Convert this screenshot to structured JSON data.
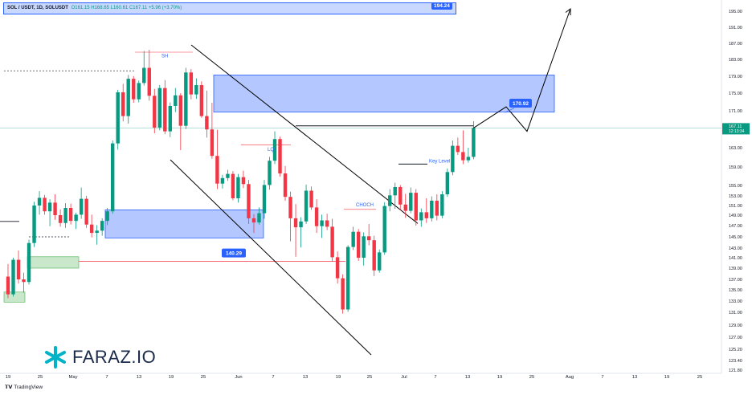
{
  "header": {
    "symbol": "SOL / USDT, 1D, SOLUSDT",
    "ohlc": "O161.15 H168.65 L160.61 C167.11 +5.96 (+3.70%)",
    "top_box_value": "194.24"
  },
  "branding": {
    "logo_text": "FARAZ.IO",
    "tradingview": "TradingView",
    "logo_color": "#00b3c7"
  },
  "colors": {
    "up": "#089981",
    "down": "#f23645",
    "zone_blue": "#2962ff",
    "zone_green": "#4caf50",
    "price_line": "#089981"
  },
  "chart_data": {
    "type": "candlestick",
    "title": "",
    "ylim": [
      121.8,
      197.0
    ],
    "y_ticks": [
      195.0,
      191.0,
      187.0,
      183.0,
      179.0,
      175.0,
      171.0,
      167.0,
      163.0,
      159.0,
      155.0,
      153.0,
      151.0,
      149.0,
      147.0,
      145.0,
      143.0,
      141.0,
      139.0,
      137.0,
      135.0,
      133.0,
      131.0,
      129.0,
      127.0,
      125.2,
      123.4,
      121.8
    ],
    "y_tick_labels": [
      "195.00",
      "191.00",
      "187.00",
      "183.00",
      "179.00",
      "175.00",
      "171.00",
      "167.00",
      "163.00",
      "159.00",
      "155.00",
      "153.00",
      "151.00",
      "149.00",
      "147.00",
      "145.00",
      "143.00",
      "141.00",
      "139.00",
      "137.00",
      "135.00",
      "133.00",
      "131.00",
      "129.00",
      "127.00",
      "125.20",
      "123.40",
      "121.80"
    ],
    "x_tick_labels": [
      "19",
      "25",
      "May",
      "7",
      "13",
      "19",
      "25",
      "Jun",
      "7",
      "13",
      "19",
      "25",
      "Jul",
      "7",
      "13",
      "19",
      "25",
      "Aug",
      "7",
      "13",
      "19",
      "25"
    ],
    "current_price": "167.11",
    "countdown": "12:13:34",
    "annotations": {
      "swing_high": "SH",
      "liquidity": "LQ",
      "key_level": "Key Level",
      "choch": "CHOCH",
      "level_140": "140.29",
      "target_170": "170.92"
    },
    "candles": [
      [
        137.5,
        139.8,
        133.5,
        134.2
      ],
      [
        134.2,
        141.0,
        133.8,
        140.6
      ],
      [
        140.6,
        142.5,
        136.2,
        137.0
      ],
      [
        137.0,
        138.2,
        134.5,
        136.5
      ],
      [
        136.5,
        144.5,
        136.0,
        143.9
      ],
      [
        143.9,
        151.8,
        143.2,
        151.0
      ],
      [
        151.0,
        153.9,
        149.1,
        152.6
      ],
      [
        152.6,
        153.2,
        149.1,
        149.8
      ],
      [
        149.8,
        152.3,
        146.9,
        151.6
      ],
      [
        151.6,
        153.3,
        148.1,
        149.0
      ],
      [
        149.0,
        150.2,
        146.8,
        147.5
      ],
      [
        147.5,
        151.5,
        146.6,
        150.5
      ],
      [
        150.5,
        151.4,
        147.2,
        147.9
      ],
      [
        147.9,
        149.5,
        146.4,
        149.1
      ],
      [
        149.1,
        154.6,
        148.3,
        152.4
      ],
      [
        152.4,
        153.0,
        146.6,
        147.2
      ],
      [
        147.2,
        149.1,
        144.9,
        145.7
      ],
      [
        145.7,
        147.1,
        143.6,
        146.1
      ],
      [
        146.1,
        148.4,
        145.2,
        147.9
      ],
      [
        147.9,
        150.5,
        147.1,
        149.8
      ],
      [
        149.8,
        164.5,
        149.3,
        163.9
      ],
      [
        163.9,
        175.8,
        162.6,
        175.2
      ],
      [
        175.2,
        177.2,
        168.6,
        169.8
      ],
      [
        169.8,
        179.3,
        168.1,
        178.4
      ],
      [
        178.4,
        179.0,
        172.8,
        173.6
      ],
      [
        173.6,
        178.0,
        172.9,
        177.4
      ],
      [
        177.4,
        185.1,
        176.8,
        181.0
      ],
      [
        181.0,
        185.4,
        173.3,
        174.4
      ],
      [
        174.4,
        176.0,
        166.0,
        167.2
      ],
      [
        167.2,
        176.9,
        166.6,
        176.2
      ],
      [
        176.2,
        178.1,
        165.8,
        166.4
      ],
      [
        166.4,
        172.9,
        165.2,
        172.1
      ],
      [
        172.1,
        176.2,
        170.7,
        174.5
      ],
      [
        174.5,
        175.0,
        162.5,
        167.6
      ],
      [
        167.6,
        181.0,
        166.9,
        179.9
      ],
      [
        179.9,
        180.7,
        173.6,
        174.7
      ],
      [
        174.7,
        178.5,
        173.7,
        176.9
      ],
      [
        176.9,
        177.8,
        169.4,
        169.8
      ],
      [
        169.8,
        175.6,
        165.1,
        166.8
      ],
      [
        166.8,
        172.8,
        160.7,
        161.3
      ],
      [
        161.3,
        166.7,
        154.3,
        155.4
      ],
      [
        155.4,
        157.3,
        154.4,
        156.6
      ],
      [
        156.6,
        158.4,
        156.0,
        157.5
      ],
      [
        157.5,
        158.1,
        152.1,
        152.5
      ],
      [
        152.5,
        157.5,
        151.6,
        156.8
      ],
      [
        156.8,
        158.2,
        154.5,
        155.3
      ],
      [
        155.3,
        156.2,
        147.3,
        148.4
      ],
      [
        148.4,
        149.2,
        145.7,
        147.6
      ],
      [
        147.6,
        150.6,
        147.2,
        149.4
      ],
      [
        149.4,
        156.2,
        148.3,
        155.1
      ],
      [
        155.1,
        161.1,
        154.2,
        160.3
      ],
      [
        160.3,
        166.4,
        159.6,
        164.8
      ],
      [
        164.8,
        165.3,
        156.9,
        157.6
      ],
      [
        157.6,
        159.2,
        152.0,
        152.8
      ],
      [
        152.8,
        153.8,
        144.2,
        148.4
      ],
      [
        148.4,
        151.3,
        141.2,
        146.7
      ],
      [
        146.7,
        148.6,
        143.1,
        147.8
      ],
      [
        147.8,
        155.2,
        147.3,
        154.0
      ],
      [
        154.0,
        154.8,
        150.1,
        150.6
      ],
      [
        150.6,
        152.3,
        145.7,
        146.9
      ],
      [
        146.9,
        149.1,
        144.8,
        148.0
      ],
      [
        148.0,
        149.3,
        146.2,
        146.8
      ],
      [
        146.8,
        148.3,
        140.3,
        141.1
      ],
      [
        141.1,
        142.3,
        136.2,
        137.2
      ],
      [
        137.2,
        137.9,
        130.8,
        131.5
      ],
      [
        131.5,
        143.5,
        131.1,
        143.2
      ],
      [
        143.2,
        146.8,
        142.6,
        145.9
      ],
      [
        145.9,
        146.4,
        140.4,
        141.0
      ],
      [
        141.0,
        145.8,
        139.5,
        145.1
      ],
      [
        145.1,
        147.3,
        143.5,
        144.4
      ],
      [
        144.4,
        145.2,
        137.6,
        138.6
      ],
      [
        138.6,
        142.7,
        138.2,
        142.1
      ],
      [
        142.1,
        151.7,
        141.6,
        150.9
      ],
      [
        150.9,
        154.3,
        149.8,
        153.1
      ],
      [
        153.1,
        155.6,
        150.3,
        154.7
      ],
      [
        154.7,
        155.1,
        150.1,
        151.2
      ],
      [
        151.2,
        153.4,
        148.5,
        149.9
      ],
      [
        149.9,
        154.6,
        149.4,
        153.6
      ],
      [
        153.6,
        154.3,
        147.0,
        148.0
      ],
      [
        148.0,
        150.4,
        146.8,
        149.6
      ],
      [
        149.6,
        152.5,
        147.5,
        148.4
      ],
      [
        148.4,
        152.9,
        147.8,
        152.0
      ],
      [
        152.0,
        153.3,
        148.0,
        148.9
      ],
      [
        148.9,
        153.9,
        148.4,
        153.3
      ],
      [
        153.3,
        158.7,
        152.8,
        157.9
      ],
      [
        157.9,
        164.5,
        157.2,
        163.4
      ],
      [
        163.4,
        165.1,
        161.5,
        162.1
      ],
      [
        162.1,
        166.6,
        159.6,
        160.4
      ],
      [
        160.4,
        163.0,
        159.9,
        161.1
      ],
      [
        161.1,
        168.65,
        160.61,
        167.11
      ]
    ],
    "projection": [
      [
        167.11,
        171.9
      ],
      [
        171.9,
        166.4
      ],
      [
        166.4,
        195.6
      ]
    ]
  }
}
